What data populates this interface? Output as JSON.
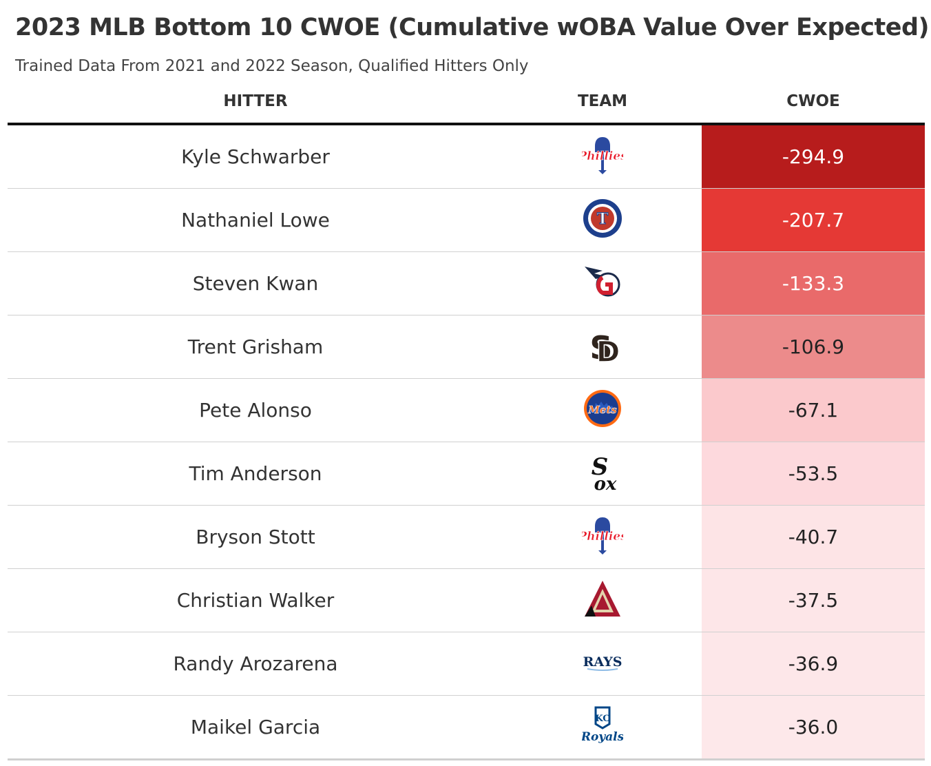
{
  "title": "2023 MLB Bottom 10 CWOE (Cumulative wOBA Value Over Expected)",
  "subtitle": "Trained Data From 2021 and 2022 Season, Qualified Hitters Only",
  "columns": {
    "hitter": "HITTER",
    "team": "TEAM",
    "cwoe": "CWOE"
  },
  "chart_data": {
    "type": "table",
    "title": "2023 MLB Bottom 10 CWOE (Cumulative wOBA Value Over Expected)",
    "subtitle": "Trained Data From 2021 and 2022 Season, Qualified Hitters Only",
    "columns": [
      "HITTER",
      "TEAM",
      "CWOE"
    ],
    "rows": [
      {
        "hitter": "Kyle Schwarber",
        "team": "phillies-logo-icon",
        "cwoe": "-294.9",
        "bg": "#b71c1c",
        "fg": "#ffffff"
      },
      {
        "hitter": "Nathaniel Lowe",
        "team": "rangers-logo-icon",
        "cwoe": "-207.7",
        "bg": "#e53935",
        "fg": "#ffffff"
      },
      {
        "hitter": "Steven Kwan",
        "team": "guardians-logo-icon",
        "cwoe": "-133.3",
        "bg": "#e96a6a",
        "fg": "#ffffff"
      },
      {
        "hitter": "Trent Grisham",
        "team": "padres-logo-icon",
        "cwoe": "-106.9",
        "bg": "#ec8b8b",
        "fg": "#222222"
      },
      {
        "hitter": "Pete Alonso",
        "team": "mets-logo-icon",
        "cwoe": "-67.1",
        "bg": "#fbc9cc",
        "fg": "#222222"
      },
      {
        "hitter": "Tim Anderson",
        "team": "white-sox-logo-icon",
        "cwoe": "-53.5",
        "bg": "#fdd9dd",
        "fg": "#222222"
      },
      {
        "hitter": "Bryson Stott",
        "team": "phillies-logo-icon",
        "cwoe": "-40.7",
        "bg": "#fde4e6",
        "fg": "#222222"
      },
      {
        "hitter": "Christian Walker",
        "team": "diamondbacks-logo-icon",
        "cwoe": "-37.5",
        "bg": "#fde6e8",
        "fg": "#222222"
      },
      {
        "hitter": "Randy Arozarena",
        "team": "rays-logo-icon",
        "cwoe": "-36.9",
        "bg": "#fde7e9",
        "fg": "#222222"
      },
      {
        "hitter": "Maikel Garcia",
        "team": "royals-logo-icon",
        "cwoe": "-36.0",
        "bg": "#fde8ea",
        "fg": "#222222"
      }
    ]
  }
}
